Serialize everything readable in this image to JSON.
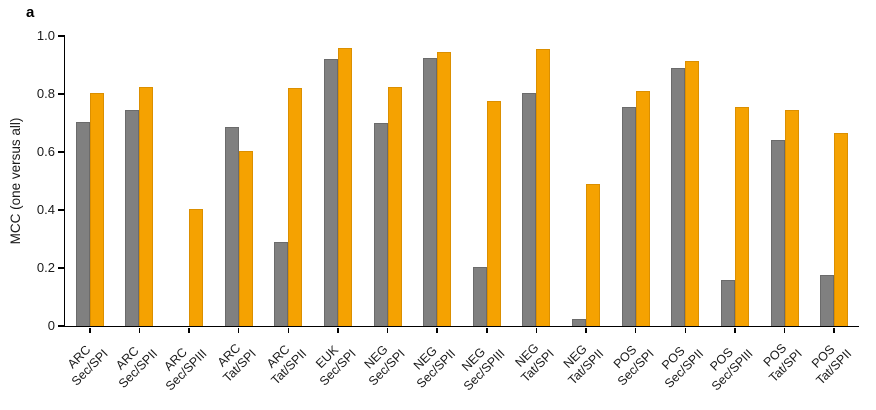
{
  "panel_label": "a",
  "colors": {
    "gray": "#808080",
    "orange": "#F5A201",
    "axis": "#000000"
  },
  "chart_data": {
    "type": "bar",
    "title": "",
    "xlabel": "",
    "ylabel": "MCC (one versus all)",
    "ylim": [
      0,
      1.0
    ],
    "yticks": [
      0,
      0.2,
      0.4,
      0.6,
      0.8,
      1.0
    ],
    "ytick_labels": [
      "0",
      "0.2",
      "0.4",
      "0.6",
      "0.8",
      "1.0"
    ],
    "grid": false,
    "legend_position": "none",
    "categories": [
      "ARC\nSec/SPI",
      "ARC\nSec/SPII",
      "ARC\nSec/SPIII",
      "ARC\nTat/SPI",
      "ARC\nTat/SPII",
      "EUK\nSec/SPI",
      "NEG\nSec/SPI",
      "NEG\nSec/SPII",
      "NEG\nSec/SPIII",
      "NEG\nTat/SPI",
      "NEG\nTat/SPII",
      "POS\nSec/SPI",
      "POS\nSec/SPII",
      "POS\nSec/SPIII",
      "POS\nTat/SPI",
      "POS\nTat/SPII"
    ],
    "series": [
      {
        "name": "gray",
        "color": "#808080",
        "edge": "#6b6b6b",
        "values": [
          0.705,
          0.745,
          0,
          0.685,
          0.29,
          0.92,
          0.7,
          0.925,
          0.205,
          0.805,
          0.025,
          0.755,
          0.89,
          0.16,
          0.64,
          0.175
        ]
      },
      {
        "name": "orange",
        "color": "#F5A201",
        "edge": "#DB8F00",
        "values": [
          0.805,
          0.825,
          0.405,
          0.605,
          0.82,
          0.96,
          0.825,
          0.945,
          0.775,
          0.955,
          0.49,
          0.81,
          0.915,
          0.755,
          0.745,
          0.665
        ]
      }
    ]
  }
}
